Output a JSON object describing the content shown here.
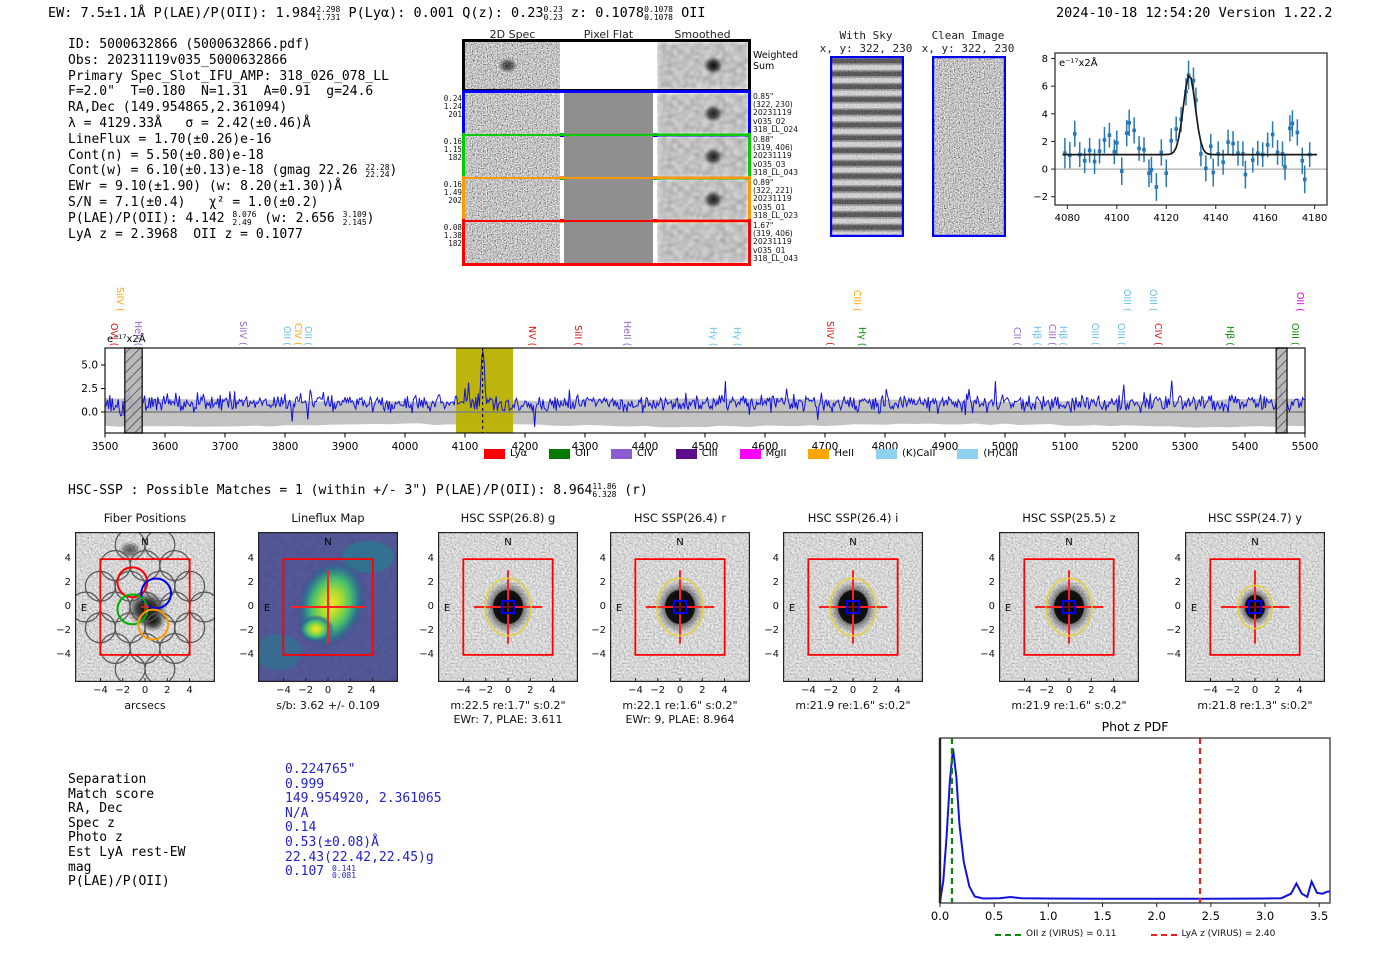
{
  "header": {
    "left_pre": "EW: 7.5±1.1Å  P(LAE)/P(OII): 1.984",
    "plae_hi": "2.298",
    "plae_lo": "1.731",
    "mid1": "  P(Lyα): 0.001  Q(z): 0.23",
    "qz_hi": "0.23",
    "qz_lo": "0.23",
    "mid2": "  z: 0.1078",
    "z_hi": "0.1078",
    "z_lo": "0.1078",
    "tail": " OII",
    "datetime": "2024-10-18 12:54:20",
    "version": "Version 1.22.2"
  },
  "info": {
    "l1": "ID: 5000632866 (5000632866.pdf)",
    "l2": "Obs: 20231119v035_5000632866",
    "l3": "Primary Spec_Slot_IFU_AMP: 318_026_078_LL",
    "l4": "F=2.0\"  T=0.180  N=1.31  A=0.91  g=24.6",
    "l5": "RA,Dec (149.954865,2.361094)",
    "l6": "λ = 4129.33Å   σ = 2.42(±0.46)Å",
    "l7": "LineFlux = 1.70(±0.26)e-16",
    "l8": "Cont(n) = 5.50(±0.80)e-18",
    "l9a": "Cont(w) = 6.10(±0.13)e-18 (gmag 22.26 ",
    "l9hi": "22.28",
    "l9lo": "22.24",
    "l9b": ")",
    "l10": "EWr = 9.10(±1.90) (w: 8.20(±1.30))Å",
    "l11": "S/N = 7.1(±0.4)   χ² = 1.0(±0.2)",
    "l12a": "P(LAE)/P(OII): 4.142 ",
    "l12hi1": "8.076",
    "l12lo1": "2.49",
    "l12b": " (w: 2.656 ",
    "l12hi2": "3.109",
    "l12lo2": "2.145",
    "l12c": ")",
    "l13": "LyA z = 2.3968  OII z = 0.1077"
  },
  "spec2d": {
    "col_titles": [
      "2D Spec",
      "Pixel Flat",
      "Smoothed"
    ],
    "rows": [
      {
        "border": "#000000",
        "left": [],
        "right": [
          "Weighted",
          "Sum"
        ]
      },
      {
        "border": "#0000ff",
        "left": [
          "0.24",
          "1.24",
          "201"
        ],
        "right": [
          "0.85\"",
          "(322, 230)",
          "20231119",
          "v035_02",
          "318_LL_024"
        ]
      },
      {
        "border": "#00cc00",
        "left": [
          "0.16",
          "1.15",
          "182"
        ],
        "right": [
          "0.88\"",
          "(319, 406)",
          "20231119",
          "v035_03",
          "318_LL_043"
        ]
      },
      {
        "border": "#ff9900",
        "left": [
          "0.16",
          "1.49",
          "202"
        ],
        "right": [
          "0.89\"",
          "(322, 221)",
          "20231119",
          "v035_01",
          "318_LL_023"
        ]
      },
      {
        "border": "#ff0000",
        "left": [
          "0.08",
          "1.38",
          "182"
        ],
        "right": [
          "1.67\"",
          "(319, 406)",
          "20231119",
          "v035_01",
          "318_LL_043"
        ]
      }
    ]
  },
  "skypanels": {
    "with_sky_title": "With Sky",
    "with_sky_sub": "x, y: 322, 230",
    "clean_title": "Clean Image",
    "clean_sub": "x, y: 322, 230"
  },
  "chart_data": [
    {
      "id": "inset_spectrum",
      "type": "scatter",
      "ylabel_annotation": "e⁻¹⁷x2Å",
      "xlim": [
        4075,
        4185
      ],
      "ylim": [
        -2.6,
        8.4
      ],
      "xticks": [
        4080,
        4100,
        4120,
        4140,
        4160,
        4180
      ],
      "yticks": [
        8,
        6,
        4,
        2,
        0,
        -2
      ],
      "fit": {
        "shape": "gaussian",
        "mu": 4129.33,
        "sigma": 2.42,
        "baseline": 1.05,
        "amplitude_above_baseline": 5.75
      },
      "points": [
        [
          4079,
          1.15,
          1.1
        ],
        [
          4081,
          1.0,
          0.95
        ],
        [
          4083,
          2.55,
          0.95
        ],
        [
          4085,
          1.05,
          0.9
        ],
        [
          4087,
          0.6,
          0.9
        ],
        [
          4089,
          1.35,
          0.9
        ],
        [
          4091,
          0.55,
          0.9
        ],
        [
          4093,
          1.3,
          0.9
        ],
        [
          4095,
          2.1,
          0.95
        ],
        [
          4097,
          2.45,
          0.9
        ],
        [
          4099,
          1.25,
          0.9
        ],
        [
          4100,
          1.9,
          0.9
        ],
        [
          4102,
          -0.15,
          1.0
        ],
        [
          4104,
          2.6,
          0.95
        ],
        [
          4105,
          3.35,
          0.95
        ],
        [
          4107,
          2.8,
          0.95
        ],
        [
          4109,
          1.5,
          0.9
        ],
        [
          4111,
          1.4,
          0.9
        ],
        [
          4113,
          -0.3,
          1.0
        ],
        [
          4114,
          -0.05,
          0.95
        ],
        [
          4116,
          -1.3,
          1.0
        ],
        [
          4118,
          1.2,
          0.95
        ],
        [
          4120,
          -0.3,
          1.0
        ],
        [
          4122,
          2.05,
          0.9
        ],
        [
          4124,
          2.9,
          0.9
        ],
        [
          4126,
          3.6,
          0.9
        ],
        [
          4128,
          5.6,
          1.0
        ],
        [
          4129,
          6.8,
          1.05
        ],
        [
          4131,
          6.4,
          0.95
        ],
        [
          4132,
          5.0,
          0.9
        ],
        [
          4134,
          1.1,
          0.9
        ],
        [
          4136,
          0.05,
          0.95
        ],
        [
          4138,
          1.65,
          0.9
        ],
        [
          4139,
          -0.25,
          1.0
        ],
        [
          4141,
          1.1,
          0.9
        ],
        [
          4143,
          0.5,
          0.9
        ],
        [
          4145,
          1.95,
          0.9
        ],
        [
          4147,
          1.85,
          0.9
        ],
        [
          4149,
          1.15,
          0.9
        ],
        [
          4151,
          1.1,
          0.9
        ],
        [
          4152,
          -0.4,
          1.0
        ],
        [
          4155,
          0.65,
          0.9
        ],
        [
          4157,
          1.15,
          0.9
        ],
        [
          4159,
          1.05,
          0.9
        ],
        [
          4161,
          1.75,
          0.9
        ],
        [
          4163,
          2.5,
          0.95
        ],
        [
          4165,
          1.2,
          0.9
        ],
        [
          4167,
          1.1,
          0.9
        ],
        [
          4168,
          0.15,
          0.95
        ],
        [
          4170,
          2.95,
          0.95
        ],
        [
          4171,
          3.3,
          0.95
        ],
        [
          4173,
          2.65,
          0.95
        ],
        [
          4175,
          0.6,
          0.95
        ],
        [
          4176,
          -0.75,
          1.0
        ],
        [
          4178,
          1.05,
          0.9
        ]
      ]
    },
    {
      "id": "main_spectrum",
      "type": "line",
      "ylabel_annotation": "e⁻¹⁷x2Å",
      "xlim": [
        3500,
        5500
      ],
      "xticks": [
        3500,
        3600,
        3700,
        3800,
        3900,
        4000,
        4100,
        4200,
        4300,
        4400,
        4500,
        4600,
        4700,
        4800,
        4900,
        5000,
        5100,
        5200,
        5300,
        5400,
        5500
      ],
      "yticks": [
        5.0,
        2.5,
        0.0
      ],
      "baseline": 0.95,
      "noise_sigma": 1.15,
      "peak": {
        "x": 4129.33,
        "height_above_baseline": 6.3,
        "sigma": 2.6
      },
      "highlight_band": [
        4085,
        4180
      ],
      "dashed_line_x": 4129.33,
      "masked_bands": [
        [
          3533,
          3562
        ],
        [
          5452,
          5470
        ]
      ],
      "error_band_halfwidth": 1.38,
      "series_note": "noisy spectrum drawn procedurally from baseline/noise/peak parameters"
    },
    {
      "id": "photz_pdf",
      "type": "line",
      "title": "Phot z PDF",
      "xlim": [
        0,
        3.6
      ],
      "xticks": [
        0.0,
        0.5,
        1.0,
        1.5,
        2.0,
        2.5,
        3.0,
        3.5
      ],
      "keypoints": [
        [
          0.0,
          0.05
        ],
        [
          0.03,
          1.2
        ],
        [
          0.06,
          3.5
        ],
        [
          0.09,
          6.5
        ],
        [
          0.12,
          8.3
        ],
        [
          0.15,
          6.8
        ],
        [
          0.18,
          4.2
        ],
        [
          0.22,
          2.2
        ],
        [
          0.27,
          0.9
        ],
        [
          0.32,
          0.35
        ],
        [
          0.4,
          0.24
        ],
        [
          0.55,
          0.26
        ],
        [
          0.65,
          0.32
        ],
        [
          0.75,
          0.26
        ],
        [
          1.0,
          0.24
        ],
        [
          1.5,
          0.23
        ],
        [
          2.0,
          0.23
        ],
        [
          2.5,
          0.23
        ],
        [
          3.0,
          0.24
        ],
        [
          3.15,
          0.26
        ],
        [
          3.24,
          0.5
        ],
        [
          3.29,
          1.05
        ],
        [
          3.34,
          0.5
        ],
        [
          3.39,
          0.33
        ],
        [
          3.43,
          1.15
        ],
        [
          3.48,
          0.55
        ],
        [
          3.53,
          0.5
        ],
        [
          3.58,
          0.62
        ],
        [
          3.6,
          0.6
        ]
      ],
      "vlines": [
        {
          "x": 0.11,
          "color": "#0a8a0a",
          "style": "dashed"
        },
        {
          "x": 2.4,
          "color": "#e82020",
          "style": "dashed"
        }
      ],
      "legend": [
        {
          "label": "OII z (VIRUS) = 0.11",
          "color": "#0a8a0a"
        },
        {
          "label": "LyA z (VIRUS) = 2.40",
          "color": "#e82020"
        }
      ]
    }
  ],
  "spectrum_legend": [
    {
      "label": "Lyα",
      "color": "#ff0000"
    },
    {
      "label": "OII",
      "color": "#007a00"
    },
    {
      "label": "CIV",
      "color": "#8a5cd0"
    },
    {
      "label": "CIII",
      "color": "#5c0d8a"
    },
    {
      "label": "MgII",
      "color": "#ff00ff"
    },
    {
      "label": "HeII",
      "color": "#ffa500"
    },
    {
      "label": "(K)CaII",
      "color": "#8fd0ee"
    },
    {
      "label": "(H)CaII",
      "color": "#8fd0ee"
    }
  ],
  "line_markers": [
    {
      "x": 114,
      "label": "OVI (",
      "color": "#e01010",
      "row": "low"
    },
    {
      "x": 120,
      "label": "SiIV (",
      "color": "#ffa500",
      "row": "top"
    },
    {
      "x": 138,
      "label": "HeII (",
      "color": "#9468c8",
      "row": "low"
    },
    {
      "x": 243,
      "label": "SiIV (",
      "color": "#9468c8",
      "row": "low"
    },
    {
      "x": 287,
      "label": "OII (",
      "color": "#6fc3e8",
      "row": "low"
    },
    {
      "x": 298,
      "label": "CIV (",
      "color": "#ffa500",
      "row": "low"
    },
    {
      "x": 308,
      "label": "OII (",
      "color": "#6fc3e8",
      "row": "low"
    },
    {
      "x": 532,
      "label": "NV (",
      "color": "#e01010",
      "row": "low"
    },
    {
      "x": 578,
      "label": "SiII (",
      "color": "#e01010",
      "row": "low"
    },
    {
      "x": 627,
      "label": "HeII (",
      "color": "#9468c8",
      "row": "low"
    },
    {
      "x": 713,
      "label": "Hγ (",
      "color": "#6fc3e8",
      "row": "low"
    },
    {
      "x": 737,
      "label": "Hγ (",
      "color": "#6fc3e8",
      "row": "low"
    },
    {
      "x": 830,
      "label": "SiIV (",
      "color": "#e01010",
      "row": "low"
    },
    {
      "x": 857,
      "label": "CIII (",
      "color": "#ffa500",
      "row": "top"
    },
    {
      "x": 862,
      "label": "Hγ (",
      "color": "#0f8a0f",
      "row": "low"
    },
    {
      "x": 1017,
      "label": "CII (",
      "color": "#9468c8",
      "row": "low"
    },
    {
      "x": 1037,
      "label": "Hβ (",
      "color": "#6fc3e8",
      "row": "low"
    },
    {
      "x": 1052,
      "label": "CIII (",
      "color": "#9468c8",
      "row": "low"
    },
    {
      "x": 1063,
      "label": "Hβ (",
      "color": "#6fc3e8",
      "row": "low"
    },
    {
      "x": 1095,
      "label": "OIII (",
      "color": "#6fc3e8",
      "row": "low"
    },
    {
      "x": 1121,
      "label": "OIII (",
      "color": "#6fc3e8",
      "row": "low"
    },
    {
      "x": 1127,
      "label": "OIII (",
      "color": "#6fc3e8",
      "row": "top"
    },
    {
      "x": 1153,
      "label": "OIII (",
      "color": "#6fc3e8",
      "row": "top"
    },
    {
      "x": 1158,
      "label": "CIV (",
      "color": "#e01010",
      "row": "low"
    },
    {
      "x": 1230,
      "label": "Hβ (",
      "color": "#0f8a0f",
      "row": "low"
    },
    {
      "x": 1295,
      "label": "OIII (",
      "color": "#0f8a0f",
      "row": "low"
    },
    {
      "x": 1300,
      "label": "OII (",
      "color": "#ee00ee",
      "row": "top"
    }
  ],
  "hsc": {
    "pre": "HSC-SSP : Possible Matches = 1 (within +/- 3\")  P(LAE)/P(OII): 8.964",
    "hi": "11.86",
    "lo": "6.328",
    "tail": " (r)"
  },
  "cutout_axis": {
    "yticks": [
      "4",
      "2",
      "0",
      "−2",
      "−4"
    ],
    "xticks": [
      "−4",
      "−2",
      "0",
      "2",
      "4"
    ]
  },
  "cutouts": [
    {
      "title": "Fiber Positions",
      "xlabel": "arcsecs",
      "extra": "",
      "type": "fiber"
    },
    {
      "title": "Lineflux Map",
      "xlabel": "s/b: 3.62 +/- 0.109",
      "extra": "",
      "type": "lineflux"
    },
    {
      "title": "HSC SSP(26.8) g",
      "xlabel": "m:22.5  re:1.7\"  s:0.2\"",
      "extra": "EWr: 7, PLAE: 3.611",
      "type": "hsc"
    },
    {
      "title": "HSC SSP(26.4) r",
      "xlabel": "m:22.1  re:1.6\"  s:0.2\"",
      "extra": "EWr: 9, PLAE: 8.964",
      "type": "hsc"
    },
    {
      "title": "HSC SSP(26.4) i",
      "xlabel": "m:21.9  re:1.6\"  s:0.2\"",
      "extra": "",
      "type": "hsc"
    },
    {
      "title": "HSC SSP(25.5) z",
      "xlabel": "m:21.9  re:1.6\"  s:0.2\"",
      "extra": "",
      "type": "hsc"
    },
    {
      "title": "HSC SSP(24.7) y",
      "xlabel": "m:21.8  re:1.3\"  s:0.2\"",
      "extra": "",
      "type": "hsc"
    }
  ],
  "compass": {
    "north": "N",
    "east": "E"
  },
  "match_table": [
    {
      "label": "Separation",
      "value": "0.224765\""
    },
    {
      "label": "Match score",
      "value": "0.999"
    },
    {
      "label": "RA, Dec",
      "value": "149.954920, 2.361065"
    },
    {
      "label": "Spec z",
      "value": "N/A"
    },
    {
      "label": "Photo z",
      "value": "0.14"
    },
    {
      "label": "Est LyA rest-EW",
      "value": "0.53(±0.08)Å"
    },
    {
      "label": "mag",
      "value": "22.43(22.42,22.45)g"
    },
    {
      "label": "P(LAE)/P(OII)",
      "value": "0.107",
      "value_hi": "0.141",
      "value_lo": "0.081"
    }
  ]
}
